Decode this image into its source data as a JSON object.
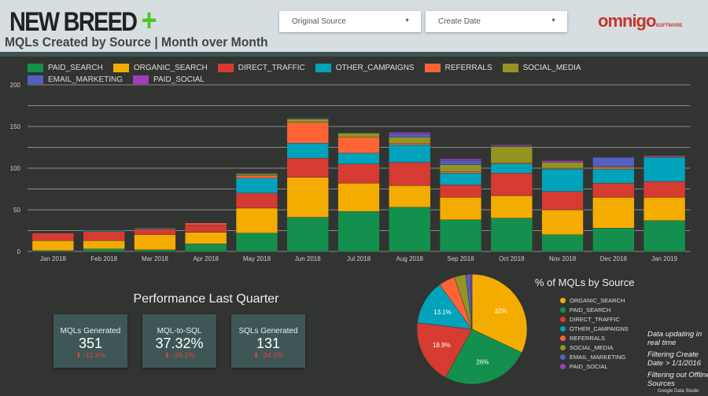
{
  "header": {
    "logo": "NEW BREED",
    "logo_plus": "+",
    "title": "MQLs Created by Source | Month over Month",
    "filters": [
      {
        "label": "Original Source"
      },
      {
        "label": "Create Date"
      }
    ],
    "partner_logo": "omnigo",
    "partner_logo_sub": "SOFTWARE"
  },
  "colors": {
    "PAID_SEARCH": "#13904d",
    "ORGANIC_SEARCH": "#f4ac00",
    "DIRECT_TRAFFIC": "#d63b31",
    "OTHER_CAMPAIGNS": "#00a3bb",
    "REFERRALS": "#fe6436",
    "SOCIAL_MEDIA": "#939421",
    "EMAIL_MARKETING": "#5360c0",
    "PAID_SOCIAL": "#9d3ebd"
  },
  "chart_data": [
    {
      "type": "bar",
      "stacked": true,
      "title": "MQLs Created by Source | Month over Month",
      "ylim": [
        0,
        200
      ],
      "yticks": [
        0,
        50,
        100,
        150,
        200
      ],
      "grid": true,
      "legend": "top",
      "categories": [
        "Jan 2018",
        "Feb 2018",
        "Mar 2018",
        "Apr 2018",
        "May 2018",
        "Jun 2018",
        "Jul 2018",
        "Aug 2018",
        "Sep 2018",
        "Oct 2018",
        "Nov 2018",
        "Dec 2018",
        "Jan 2019"
      ],
      "series": [
        {
          "name": "PAID_SEARCH",
          "values": [
            1,
            3,
            2,
            9,
            22,
            41,
            48,
            53,
            38,
            40,
            20,
            28,
            37
          ]
        },
        {
          "name": "ORGANIC_SEARCH",
          "values": [
            12,
            10,
            18,
            14,
            30,
            48,
            34,
            26,
            27,
            27,
            30,
            37,
            28
          ]
        },
        {
          "name": "DIRECT_TRAFFIC",
          "values": [
            9,
            11,
            7,
            9,
            18,
            23,
            23,
            28,
            15,
            27,
            22,
            17,
            19
          ]
        },
        {
          "name": "OTHER_CAMPAIGNS",
          "values": [
            0,
            1,
            1,
            0,
            18,
            18,
            13,
            21,
            14,
            11,
            27,
            17,
            29
          ]
        },
        {
          "name": "REFERRALS",
          "values": [
            0,
            0,
            0,
            2,
            3,
            25,
            19,
            2,
            2,
            1,
            1,
            2,
            1
          ]
        },
        {
          "name": "SOCIAL_MEDIA",
          "values": [
            0,
            0,
            0,
            0,
            2,
            4,
            5,
            7,
            8,
            20,
            7,
            1,
            0
          ]
        },
        {
          "name": "EMAIL_MARKETING",
          "values": [
            0,
            0,
            0,
            0,
            1,
            1,
            0,
            4,
            5,
            1,
            0,
            11,
            0
          ]
        },
        {
          "name": "PAID_SOCIAL",
          "values": [
            0,
            0,
            0,
            0,
            0,
            0,
            0,
            2,
            2,
            1,
            2,
            0,
            1
          ]
        }
      ]
    },
    {
      "type": "pie",
      "title": "% of MQLs by Source",
      "legend": "right",
      "slices": [
        {
          "name": "ORGANIC_SEARCH",
          "value": 32,
          "label": "32%"
        },
        {
          "name": "PAID_SEARCH",
          "value": 26,
          "label": "26%"
        },
        {
          "name": "DIRECT_TRAFFIC",
          "value": 18.9,
          "label": "18.9%"
        },
        {
          "name": "OTHER_CAMPAIGNS",
          "value": 13.1,
          "label": "13.1%"
        },
        {
          "name": "REFERRALS",
          "value": 4.8
        },
        {
          "name": "SOCIAL_MEDIA",
          "value": 3.4
        },
        {
          "name": "EMAIL_MARKETING",
          "value": 1.4
        },
        {
          "name": "PAID_SOCIAL",
          "value": 0.4
        }
      ]
    }
  ],
  "performance": {
    "title": "Performance Last Quarter",
    "cards": [
      {
        "label": "MQLs Generated",
        "value": "351",
        "delta": "-11.4%"
      },
      {
        "label": "MQL-to-SQL",
        "value": "37.32%",
        "delta": "-26.1%"
      },
      {
        "label": "SQLs Generated",
        "value": "131",
        "delta": "-34.5%"
      }
    ]
  },
  "notes": [
    "Data updating in real time",
    "Filtering Create Date > 1/1/2016",
    "Filtering out Offline Sources"
  ],
  "footer": "Google Data Studio"
}
